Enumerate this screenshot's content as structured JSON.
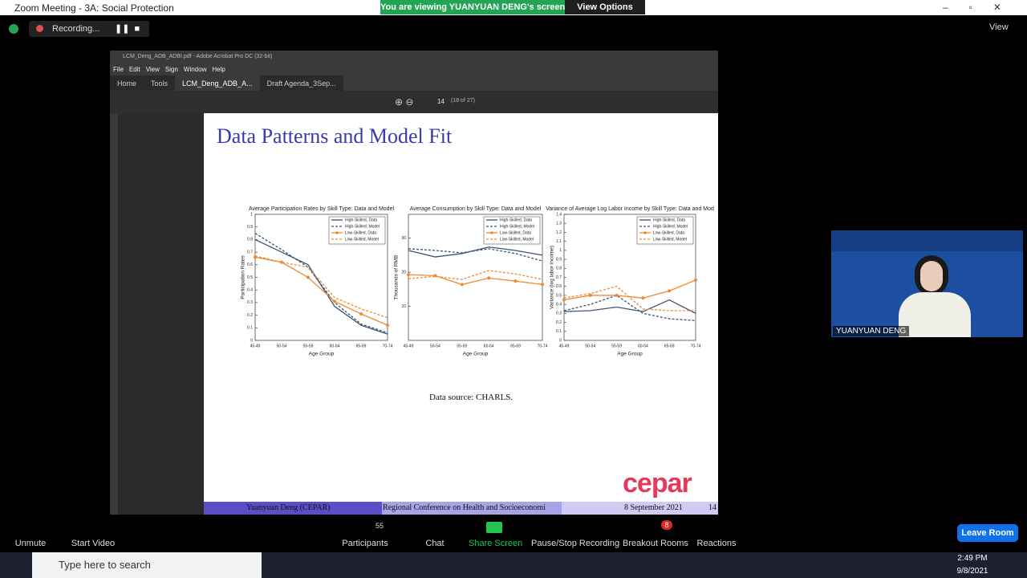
{
  "zoom": {
    "window_title": "Zoom Meeting - 3A: Social Protection",
    "banner": "You are viewing YUANYUAN DENG's screen",
    "view_options": "View Options",
    "recording": "Recording...",
    "view": "View"
  },
  "acrobat": {
    "window_title": "LCM_Deng_ADB_ADBI.pdf - Adobe Acrobat Pro DC (32-bit)",
    "menu": [
      "File",
      "Edit",
      "View",
      "Sign",
      "Window",
      "Help"
    ],
    "tabs": [
      "Home",
      "Tools",
      "LCM_Deng_ADB_A...",
      "Draft Agenda_3Sep..."
    ],
    "page": "14",
    "page_of": "(18 of 27)"
  },
  "slide": {
    "title": "Data Patterns and Model Fit",
    "source": "Data source: CHARLS.",
    "logo": "cepar",
    "footer": [
      "Yuanyuan Deng (CEPAR)",
      "Regional Conference on Health and Socioeconomi",
      "8 September 2021",
      "14"
    ]
  },
  "chart_data": [
    {
      "type": "line",
      "title": "Average Participation Rates by Skill Type: Data and Model",
      "xlabel": "Age Group",
      "ylabel": "Participation Rates",
      "categories": [
        "45-49",
        "50-54",
        "55-59",
        "60-64",
        "65-69",
        "70-74"
      ],
      "ylim": [
        0,
        1
      ],
      "yticks": [
        0,
        0.1,
        0.2,
        0.3,
        0.4,
        0.5,
        0.6,
        0.7,
        0.8,
        0.9,
        1
      ],
      "series": [
        {
          "name": "High-Skilled, Data",
          "color": "#3d5373",
          "dash": false,
          "markers": false,
          "values": [
            0.8,
            0.7,
            0.6,
            0.27,
            0.12,
            0.05
          ]
        },
        {
          "name": "High-Skilled, Model",
          "color": "#3d5373",
          "dash": true,
          "markers": false,
          "values": [
            0.85,
            0.72,
            0.58,
            0.3,
            0.13,
            0.06
          ]
        },
        {
          "name": "Low-Skilled, Data",
          "color": "#f08a30",
          "dash": false,
          "markers": true,
          "values": [
            0.66,
            0.62,
            0.5,
            0.31,
            0.21,
            0.12
          ]
        },
        {
          "name": "Low-Skilled, Model",
          "color": "#f08a30",
          "dash": true,
          "markers": false,
          "values": [
            0.67,
            0.62,
            0.58,
            0.34,
            0.25,
            0.18
          ]
        }
      ]
    },
    {
      "type": "line",
      "title": "Average Consumption by Skill Type: Data and Model",
      "xlabel": "Age Group",
      "ylabel": "Thousands of RMB",
      "categories": [
        "45-49",
        "50-54",
        "55-59",
        "60-64",
        "65-69",
        "70-74"
      ],
      "ylim": [
        0,
        37
      ],
      "yticks": [
        10,
        20,
        30
      ],
      "series": [
        {
          "name": "High-Skilled, Data",
          "color": "#3d5373",
          "dash": false,
          "markers": false,
          "values": [
            26.4,
            24.5,
            25.5,
            27.4,
            26.4,
            25
          ]
        },
        {
          "name": "High-Skilled, Model",
          "color": "#3d5373",
          "dash": true,
          "markers": false,
          "values": [
            26.9,
            26.4,
            25.7,
            26.9,
            25.5,
            23.3
          ]
        },
        {
          "name": "Low-Skilled, Data",
          "color": "#f08a30",
          "dash": false,
          "markers": true,
          "values": [
            19.3,
            19,
            16.4,
            18.3,
            17.4,
            16.4
          ]
        },
        {
          "name": "Low-Skilled, Model",
          "color": "#f08a30",
          "dash": true,
          "markers": false,
          "values": [
            18.1,
            18.8,
            17.9,
            20.5,
            19.5,
            17.9
          ]
        }
      ]
    },
    {
      "type": "line",
      "title": "Variance of Average Log Labor Income by Skill Type: Data and Mod",
      "xlabel": "Age Group",
      "ylabel": "Variance (log labor income)",
      "categories": [
        "45-49",
        "50-54",
        "55-59",
        "60-64",
        "65-69",
        "70-74"
      ],
      "ylim": [
        0,
        1.4
      ],
      "yticks": [
        0,
        0.1,
        0.2,
        0.3,
        0.4,
        0.5,
        0.6,
        0.7,
        0.8,
        0.9,
        1,
        1.1,
        1.2,
        1.3,
        1.4
      ],
      "series": [
        {
          "name": "High-Skilled, Data",
          "color": "#3d5373",
          "dash": false,
          "markers": false,
          "values": [
            0.32,
            0.33,
            0.37,
            0.32,
            0.45,
            0.3
          ]
        },
        {
          "name": "High-Skilled, Model",
          "color": "#3d5373",
          "dash": true,
          "markers": false,
          "values": [
            0.33,
            0.4,
            0.5,
            0.3,
            0.24,
            0.22
          ]
        },
        {
          "name": "Low-Skilled, Data",
          "color": "#f08a30",
          "dash": false,
          "markers": true,
          "values": [
            0.45,
            0.5,
            0.5,
            0.47,
            0.55,
            0.67
          ]
        },
        {
          "name": "Low-Skilled, Model",
          "color": "#f08a30",
          "dash": true,
          "markers": false,
          "values": [
            0.47,
            0.52,
            0.6,
            0.35,
            0.33,
            0.33
          ]
        }
      ]
    }
  ],
  "video": {
    "name": "YUANYUAN DENG"
  },
  "toolbar": {
    "unmute": "Unmute",
    "start_video": "Start Video",
    "participants": "Participants",
    "participant_count": "55",
    "chat": "Chat",
    "share_screen": "Share Screen",
    "recording": "Pause/Stop Recording",
    "breakout": "Breakout Rooms",
    "breakout_count": "8",
    "reactions": "Reactions",
    "leave": "Leave Room"
  },
  "taskbar": {
    "search": "Type here to search",
    "time": "2:49 PM",
    "date": "9/8/2021"
  }
}
